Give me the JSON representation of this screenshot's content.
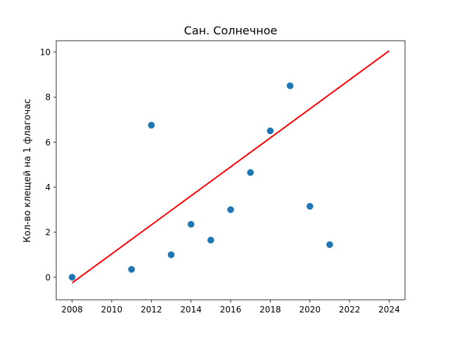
{
  "chart_data": {
    "type": "scatter",
    "title": "Сан. Солнечное",
    "xlabel": "",
    "ylabel": "Кол-во клещей на 1 флагочас",
    "xlim": [
      2007.2,
      2024.8
    ],
    "ylim": [
      -1.0,
      10.5
    ],
    "grid": false,
    "x_ticks": [
      2008,
      2010,
      2012,
      2014,
      2016,
      2018,
      2020,
      2022,
      2024
    ],
    "y_ticks": [
      0,
      2,
      4,
      6,
      8,
      10
    ],
    "series": [
      {
        "type": "scatter",
        "color": "#1f77b4",
        "points": [
          {
            "x": 2008,
            "y": 0.0
          },
          {
            "x": 2011,
            "y": 0.35
          },
          {
            "x": 2012,
            "y": 6.75
          },
          {
            "x": 2013,
            "y": 1.0
          },
          {
            "x": 2014,
            "y": 2.35
          },
          {
            "x": 2015,
            "y": 1.65
          },
          {
            "x": 2016,
            "y": 3.0
          },
          {
            "x": 2017,
            "y": 4.65
          },
          {
            "x": 2018,
            "y": 6.5
          },
          {
            "x": 2019,
            "y": 8.5
          },
          {
            "x": 2020,
            "y": 3.15
          },
          {
            "x": 2021,
            "y": 1.45
          }
        ]
      },
      {
        "type": "line",
        "color": "#ff0000",
        "points": [
          {
            "x": 2008,
            "y": -0.25
          },
          {
            "x": 2024,
            "y": 10.05
          }
        ]
      }
    ]
  }
}
